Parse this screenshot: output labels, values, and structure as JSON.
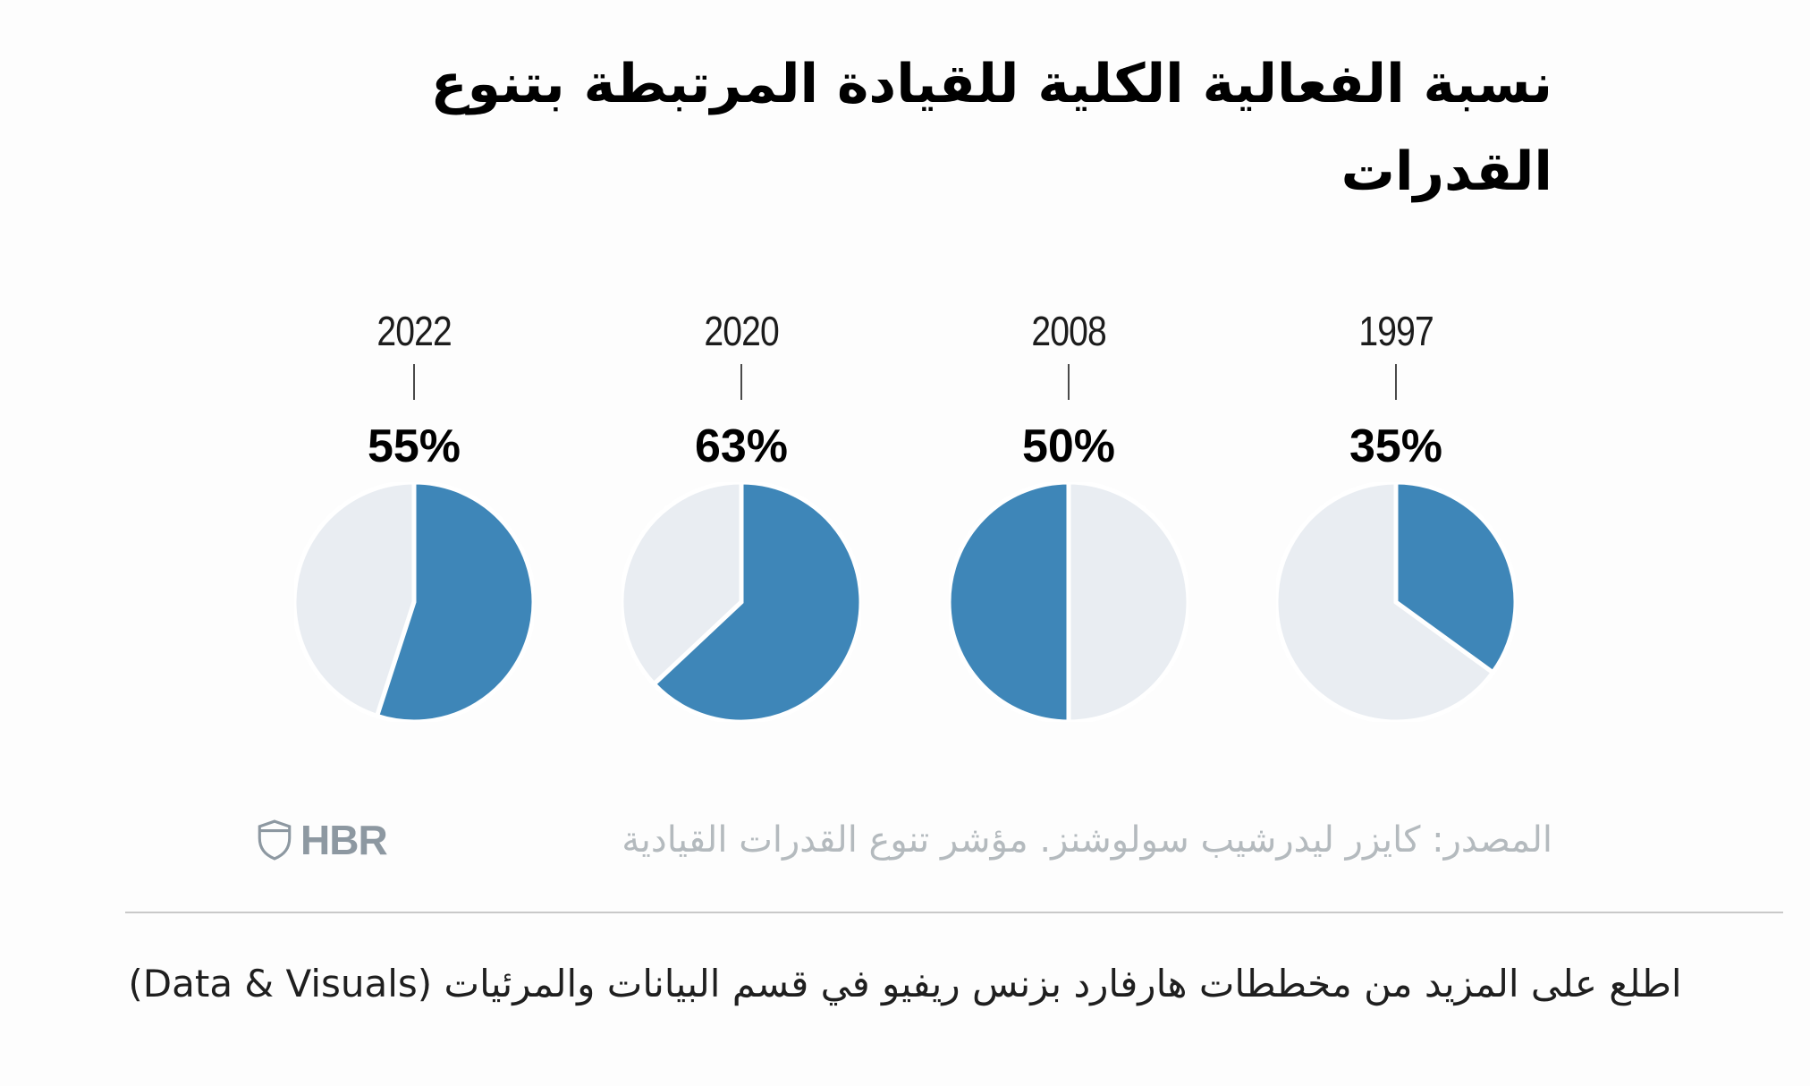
{
  "title": {
    "line1": "نسبة الفعالية الكلية للقيادة المرتبطة بتنوع",
    "line2": "القدرات"
  },
  "chart_data": {
    "type": "pie",
    "title": "نسبة الفعالية الكلية للقيادة المرتبطة بتنوع القدرات",
    "unit": "%",
    "colors": {
      "filled": "#3e86b8",
      "remainder": "#e9edf2",
      "slice_gap": "#ffffff"
    },
    "pies": [
      {
        "year": "2022",
        "value": 55,
        "label": "55%",
        "blue_start_deg": 0
      },
      {
        "year": "2020",
        "value": 63,
        "label": "63%",
        "blue_start_deg": 0
      },
      {
        "year": "2008",
        "value": 50,
        "label": "50%",
        "blue_start_deg": 180
      },
      {
        "year": "1997",
        "value": 35,
        "label": "35%",
        "blue_start_deg": 0
      }
    ]
  },
  "footer": {
    "logo_text": "HBR",
    "source": "المصدر: كايزر ليدرشيب سولوشنز. مؤشر تنوع القدرات القيادية"
  },
  "bottom_note": "اطلع على المزيد من مخططات هارفارد بزنس ريفيو في قسم البيانات والمرئيات (Data & Visuals)"
}
